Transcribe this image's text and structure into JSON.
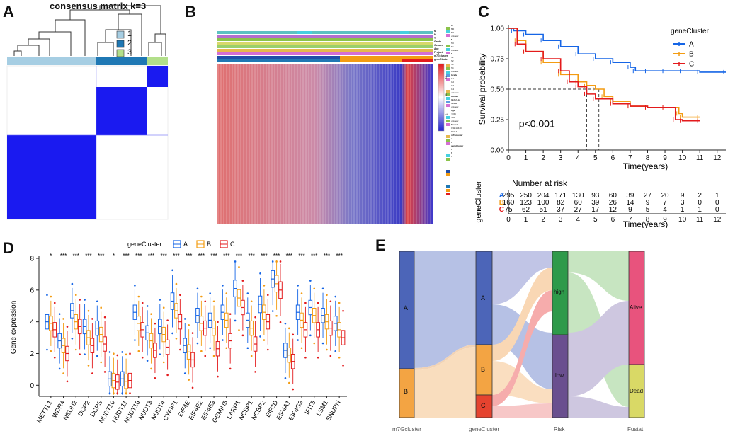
{
  "panels": {
    "A": {
      "label": "A",
      "title": "consensus matrix k=3",
      "legend": [
        "1",
        "2",
        "3"
      ],
      "colors": {
        "c1": "#a6cee3",
        "c2": "#1f78b4",
        "c3": "#b2df8a",
        "blue": "#1a1af0"
      }
    },
    "B": {
      "label": "B",
      "annotation_rows": [
        "M",
        "N",
        "T",
        "Grade",
        "Gender",
        "Age",
        "Project",
        "m7Gcluster",
        "geneCluster"
      ],
      "legend_groups": [
        {
          "title": "M",
          "items": [
            "M0",
            "M1",
            "unknow"
          ]
        },
        {
          "title": "N",
          "items": [
            "N0",
            "N1",
            "unknow"
          ]
        },
        {
          "title": "T",
          "items": [
            "T1",
            "T2",
            "T3",
            "T4",
            "unknow"
          ]
        },
        {
          "title": "Grade",
          "items": [
            "G1",
            "G2",
            "G3",
            "G4",
            "unknow"
          ]
        },
        {
          "title": "Gender",
          "items": [
            "FEMALE",
            "MALE",
            "unknow"
          ]
        },
        {
          "title": "Age",
          "items": [
            ">=65",
            "<65",
            "unknow"
          ]
        },
        {
          "title": "Project",
          "items": [
            "GSE10440",
            "TCGA"
          ]
        },
        {
          "title": "m7Gcluster",
          "items": [
            "A",
            "B"
          ]
        },
        {
          "title": "geneCluster",
          "items": [
            "A",
            "B",
            "C"
          ]
        }
      ],
      "scale": [
        "2",
        "0",
        "-2"
      ]
    },
    "E": {
      "label": "E",
      "axis_labels": [
        "m7Gcluster",
        "geneCluster",
        "Risk",
        "Fustat"
      ],
      "node_labels": {
        "m7g_a": "A",
        "m7g_b": "B",
        "gc_a": "A",
        "gc_b": "B",
        "gc_c": "C",
        "high": "high",
        "low": "low",
        "alive": "Alive",
        "dead": "Dead"
      }
    }
  },
  "chart_data": [
    {
      "type": "line",
      "panel": "C",
      "label": "C",
      "title": "",
      "xlabel": "Time(years)",
      "ylabel": "Survival probability",
      "xlim": [
        0,
        12.5
      ],
      "ylim": [
        0,
        1
      ],
      "xticks": [
        "0",
        "1",
        "2",
        "3",
        "4",
        "5",
        "6",
        "7",
        "8",
        "9",
        "10",
        "11",
        "12"
      ],
      "yticks": [
        "0.00",
        "0.25",
        "0.50",
        "0.75",
        "1.00"
      ],
      "legend_title": "geneCluster",
      "annotation": "p<0.001",
      "median_survival": {
        "B": 5.2,
        "C": 4.5
      },
      "series": [
        {
          "name": "A",
          "color": "#1565e6",
          "x": [
            0,
            0.3,
            1,
            2,
            3,
            4,
            5,
            6,
            7,
            7.3,
            8,
            9,
            10,
            11,
            12.5
          ],
          "y": [
            1.0,
            0.98,
            0.95,
            0.9,
            0.85,
            0.79,
            0.75,
            0.72,
            0.68,
            0.65,
            0.65,
            0.65,
            0.65,
            0.64,
            0.64
          ]
        },
        {
          "name": "B",
          "color": "#f39c12",
          "x": [
            0,
            0.5,
            1,
            2,
            3,
            4,
            4.5,
            5,
            5.5,
            6,
            7,
            8,
            9,
            9.8,
            10,
            11
          ],
          "y": [
            1.0,
            0.9,
            0.81,
            0.72,
            0.62,
            0.56,
            0.53,
            0.5,
            0.44,
            0.4,
            0.36,
            0.35,
            0.35,
            0.3,
            0.27,
            0.27
          ]
        },
        {
          "name": "C",
          "color": "#e31a1c",
          "x": [
            0,
            0.5,
            1,
            2,
            3,
            3.5,
            4,
            4.5,
            5,
            6,
            7,
            8,
            9,
            9.6,
            10,
            11
          ],
          "y": [
            1.0,
            0.87,
            0.81,
            0.75,
            0.65,
            0.56,
            0.52,
            0.46,
            0.42,
            0.38,
            0.36,
            0.35,
            0.35,
            0.25,
            0.24,
            0.24
          ]
        }
      ],
      "risk_table": {
        "title": "Number at risk",
        "ylabel": "geneCluster",
        "xlabel": "Time(years)",
        "rows": [
          {
            "name": "A",
            "color": "#1565e6",
            "values": [
              "295",
              "250",
              "204",
              "171",
              "130",
              "93",
              "60",
              "39",
              "27",
              "20",
              "9",
              "2",
              "1"
            ]
          },
          {
            "name": "B",
            "color": "#f39c12",
            "values": [
              "160",
              "123",
              "100",
              "82",
              "60",
              "39",
              "26",
              "14",
              "9",
              "7",
              "3",
              "0",
              "0"
            ]
          },
          {
            "name": "C",
            "color": "#e31a1c",
            "values": [
              "75",
              "62",
              "51",
              "37",
              "27",
              "17",
              "12",
              "9",
              "5",
              "4",
              "1",
              "1",
              "0"
            ]
          }
        ]
      }
    },
    {
      "type": "box",
      "panel": "D",
      "label": "D",
      "title": "",
      "xlabel": "",
      "ylabel": "Gene expression",
      "ylim": [
        -0.7,
        8
      ],
      "yticks": [
        "0",
        "2",
        "4",
        "6",
        "8"
      ],
      "legend_title": "geneCluster",
      "series_names": [
        "A",
        "B",
        "C"
      ],
      "series_colors": [
        "#1565e6",
        "#f39c12",
        "#e31a1c"
      ],
      "categories": [
        "METTL1",
        "WDR4",
        "NSUN2",
        "DCP2",
        "DCPS",
        "NUDT10",
        "NUDT11",
        "NUDT16",
        "NUDT3",
        "NUDT4",
        "CYFIP1",
        "EIF4E",
        "EIF4E2",
        "EIF4E3",
        "GEMIN5",
        "LARP1",
        "NCBP1",
        "NCBP2",
        "EIF3D",
        "EIF4A1",
        "EIF4G3",
        "IFIT5",
        "LSM1",
        "SNUPN"
      ],
      "significance": [
        "*",
        "***",
        "***",
        "***",
        "***",
        "*",
        "***",
        "***",
        "***",
        "***",
        "***",
        "***",
        "***",
        "***",
        "***",
        "***",
        "***",
        "***",
        "***",
        "***",
        "***",
        "***",
        "***",
        "***"
      ],
      "medians": [
        [
          4.0,
          2.8,
          4.7,
          3.7,
          3.6,
          0.4,
          0.4,
          4.6,
          3.3,
          3.7,
          5.3,
          2.5,
          4.4,
          4.1,
          4.6,
          6.1,
          4.1,
          5.1,
          6.7,
          2.2,
          4.6,
          4.9,
          4.4,
          3.9
        ],
        [
          3.9,
          2.5,
          4.0,
          3.0,
          3.2,
          0.3,
          0.25,
          3.9,
          2.8,
          3.2,
          4.7,
          2.1,
          3.9,
          3.6,
          4.1,
          5.5,
          3.6,
          4.6,
          6.4,
          1.9,
          4.1,
          4.4,
          4.0,
          3.5
        ],
        [
          3.5,
          2.0,
          3.7,
          2.5,
          2.6,
          0.2,
          0.3,
          3.5,
          2.2,
          2.4,
          4.0,
          1.6,
          3.6,
          2.3,
          2.8,
          4.9,
          2.6,
          4.0,
          6.0,
          1.5,
          3.5,
          3.5,
          3.6,
          3.0
        ]
      ]
    }
  ]
}
